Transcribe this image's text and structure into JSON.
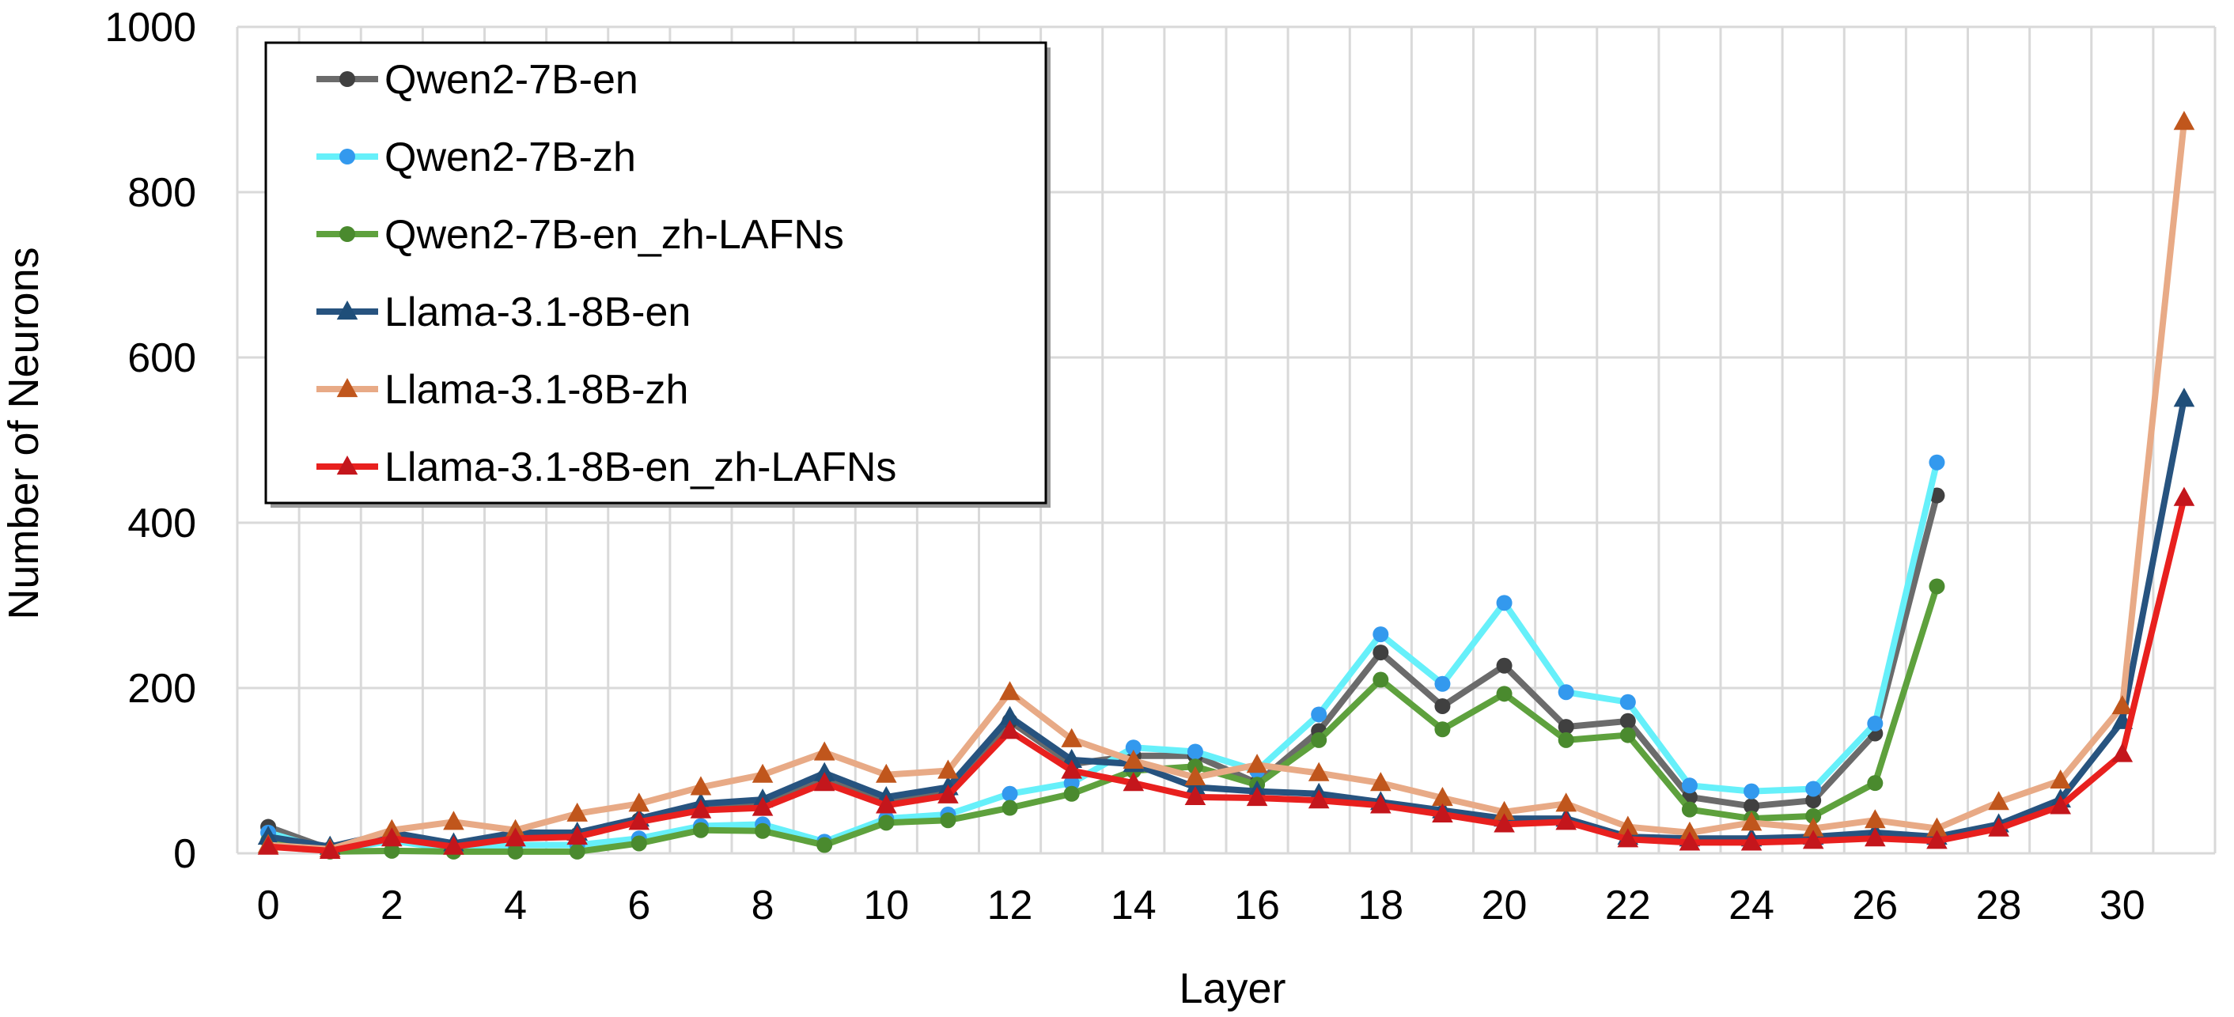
{
  "chart_data": {
    "type": "line",
    "title": "",
    "xlabel": "Layer",
    "ylabel": "Number of Neurons",
    "xlim": [
      -0.5,
      31.5
    ],
    "ylim": [
      0,
      1000
    ],
    "x_ticks": [
      "0",
      "2",
      "4",
      "6",
      "8",
      "10",
      "12",
      "14",
      "16",
      "18",
      "20",
      "22",
      "24",
      "26",
      "28",
      "30"
    ],
    "y_ticks": [
      "0",
      "200",
      "400",
      "600",
      "800",
      "1000"
    ],
    "grid": true,
    "legend_position": "top-left",
    "series": [
      {
        "name": "Qwen2-7B-en",
        "color": "#6b6b6b",
        "marker_color": "#404040",
        "marker": "circle",
        "x": [
          0,
          1,
          2,
          3,
          4,
          5,
          6,
          7,
          8,
          9,
          10,
          11,
          12,
          13,
          14,
          15,
          16,
          17,
          18,
          19,
          20,
          21,
          22,
          23,
          24,
          25,
          26,
          27
        ],
        "values": [
          32,
          5,
          20,
          8,
          20,
          22,
          40,
          55,
          60,
          92,
          62,
          75,
          160,
          108,
          118,
          118,
          85,
          148,
          243,
          178,
          227,
          153,
          160,
          68,
          57,
          64,
          145,
          433
        ]
      },
      {
        "name": "Qwen2-7B-zh",
        "color": "#66f0fa",
        "marker_color": "#3399ee",
        "marker": "circle",
        "x": [
          0,
          1,
          2,
          3,
          4,
          5,
          6,
          7,
          8,
          9,
          10,
          11,
          12,
          13,
          14,
          15,
          16,
          17,
          18,
          19,
          20,
          21,
          22,
          23,
          24,
          25,
          26,
          27
        ],
        "values": [
          25,
          3,
          15,
          5,
          10,
          10,
          18,
          33,
          35,
          14,
          42,
          47,
          72,
          85,
          128,
          123,
          100,
          168,
          265,
          205,
          303,
          195,
          183,
          82,
          75,
          78,
          157,
          473
        ]
      },
      {
        "name": "Qwen2-7B-en_zh-LAFNs",
        "color": "#5ea13d",
        "marker_color": "#4a8a2e",
        "marker": "circle",
        "x": [
          0,
          1,
          2,
          3,
          4,
          5,
          6,
          7,
          8,
          9,
          10,
          11,
          12,
          13,
          14,
          15,
          16,
          17,
          18,
          19,
          20,
          21,
          22,
          23,
          24,
          25,
          26,
          27
        ],
        "values": [
          15,
          2,
          3,
          2,
          2,
          2,
          12,
          28,
          27,
          10,
          37,
          40,
          55,
          72,
          100,
          105,
          83,
          137,
          210,
          150,
          193,
          137,
          143,
          53,
          42,
          45,
          85,
          323
        ]
      },
      {
        "name": "Llama-3.1-8B-en",
        "color": "#27537f",
        "marker_color": "#1f4e79",
        "marker": "triangle",
        "x": [
          0,
          1,
          2,
          3,
          4,
          5,
          6,
          7,
          8,
          9,
          10,
          11,
          12,
          13,
          14,
          15,
          16,
          17,
          18,
          19,
          20,
          21,
          22,
          23,
          24,
          25,
          26,
          27,
          28,
          29,
          30,
          31
        ],
        "values": [
          20,
          8,
          25,
          12,
          25,
          25,
          42,
          60,
          65,
          97,
          68,
          80,
          165,
          113,
          108,
          80,
          75,
          72,
          62,
          52,
          42,
          42,
          20,
          18,
          18,
          20,
          25,
          20,
          35,
          65,
          160,
          550
        ]
      },
      {
        "name": "Llama-3.1-8B-zh",
        "color": "#e8aa86",
        "marker_color": "#c0561c",
        "marker": "triangle",
        "x": [
          0,
          1,
          2,
          3,
          4,
          5,
          6,
          7,
          8,
          9,
          10,
          11,
          12,
          13,
          14,
          15,
          16,
          17,
          18,
          19,
          20,
          21,
          22,
          23,
          24,
          25,
          26,
          27,
          28,
          29,
          30,
          31
        ],
        "values": [
          10,
          5,
          28,
          38,
          28,
          48,
          60,
          80,
          95,
          122,
          95,
          100,
          195,
          138,
          112,
          92,
          107,
          97,
          85,
          67,
          50,
          60,
          32,
          25,
          37,
          30,
          40,
          30,
          62,
          88,
          178,
          885
        ]
      },
      {
        "name": "Llama-3.1-8B-en_zh-LAFNs",
        "color": "#e8201e",
        "marker_color": "#c4161c",
        "marker": "triangle",
        "x": [
          0,
          1,
          2,
          3,
          4,
          5,
          6,
          7,
          8,
          9,
          10,
          11,
          12,
          13,
          14,
          15,
          16,
          17,
          18,
          19,
          20,
          21,
          22,
          23,
          24,
          25,
          26,
          27,
          28,
          29,
          30,
          31
        ],
        "values": [
          8,
          3,
          18,
          8,
          18,
          20,
          38,
          52,
          55,
          85,
          58,
          70,
          148,
          100,
          85,
          68,
          67,
          64,
          58,
          47,
          35,
          38,
          17,
          13,
          13,
          15,
          18,
          15,
          30,
          57,
          120,
          430
        ]
      }
    ]
  }
}
